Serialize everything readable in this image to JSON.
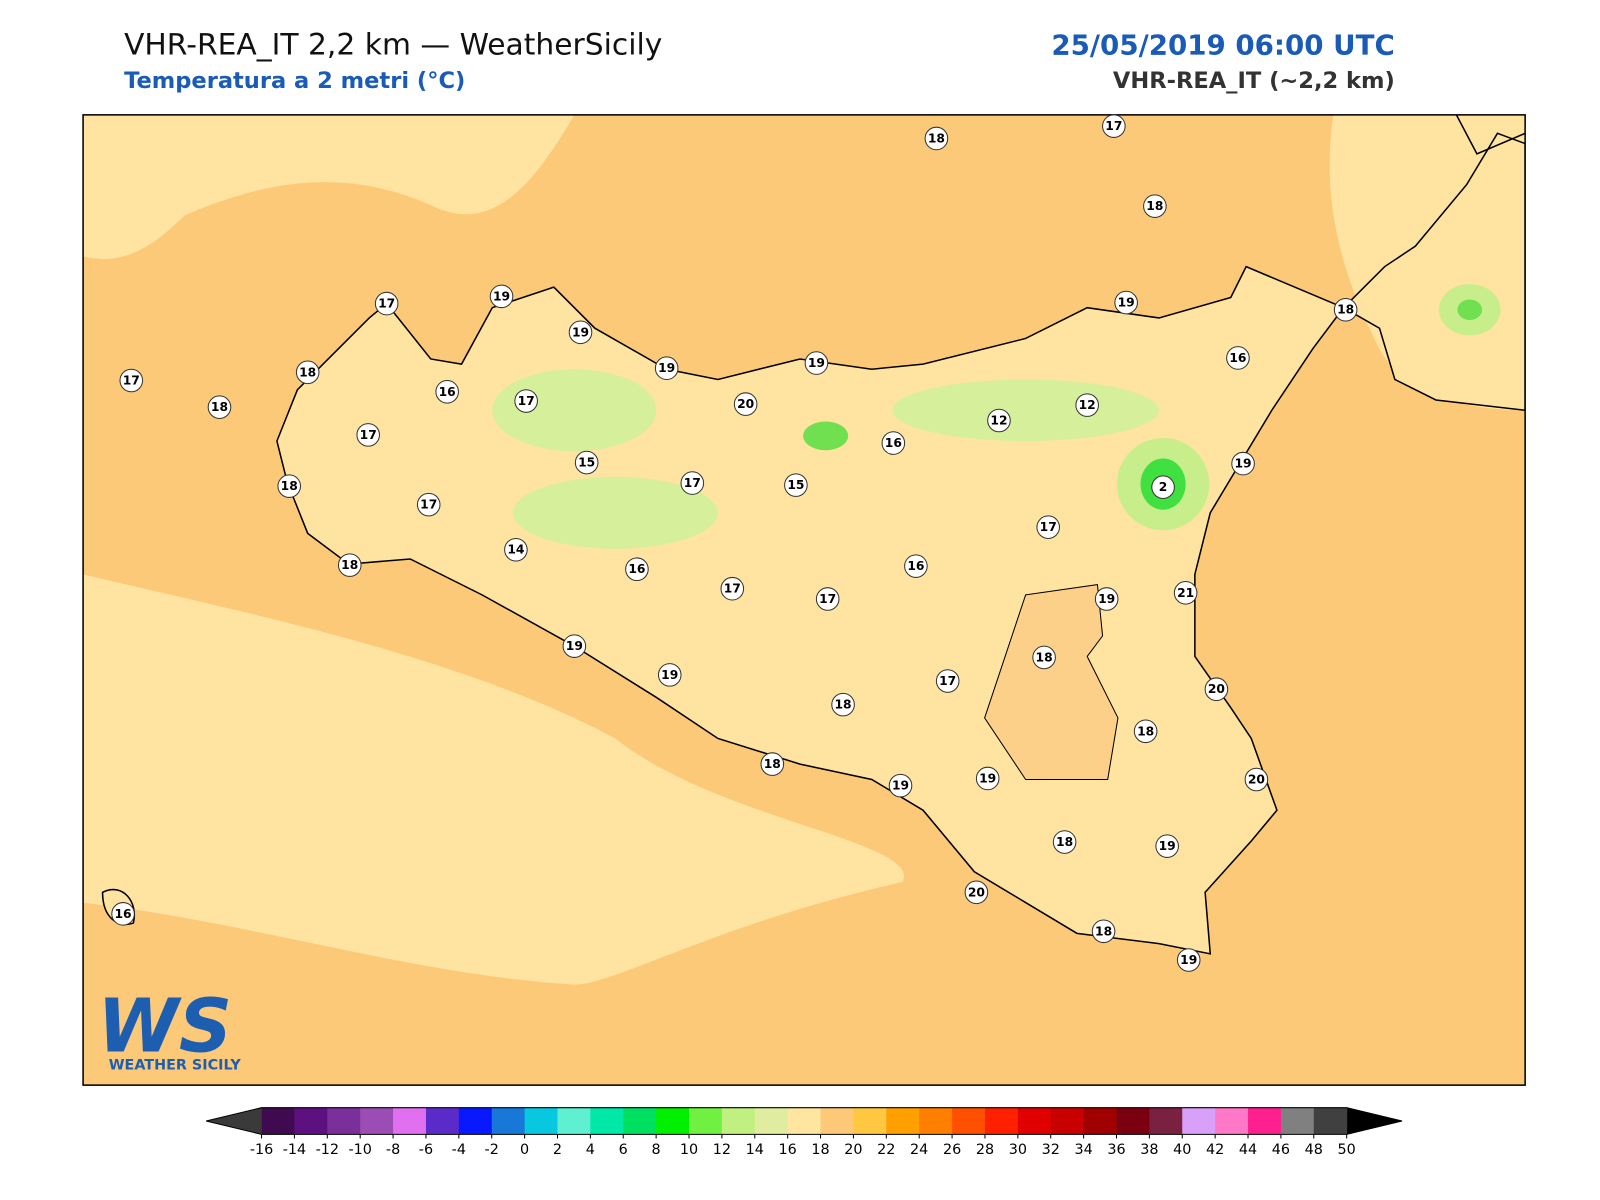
{
  "header": {
    "title": "VHR-REA_IT 2,2 km — WeatherSicily",
    "subtitle": "Temperatura a 2 metri (°C)",
    "datetime": "25/05/2019 06:00 UTC",
    "model": "VHR-REA_IT (~2,2 km)"
  },
  "logo": {
    "mark": "WS",
    "name": "WEATHER SICILY"
  },
  "stations": [
    18,
    17,
    18,
    17,
    19,
    19,
    19,
    19,
    19,
    18,
    16,
    17,
    18,
    16,
    18,
    17,
    20,
    17,
    12,
    12,
    16,
    15,
    17,
    15,
    2,
    19,
    18,
    17,
    14,
    18,
    16,
    17,
    16,
    17,
    17,
    19,
    21,
    18,
    19,
    19,
    17,
    18,
    20,
    18,
    18,
    19,
    19,
    20,
    18,
    19,
    20,
    18,
    19,
    16
  ],
  "colorbar": {
    "ticks": [
      -16,
      -14,
      -12,
      -10,
      -8,
      -6,
      -4,
      -2,
      0,
      2,
      4,
      6,
      8,
      10,
      12,
      14,
      16,
      18,
      20,
      22,
      24,
      26,
      28,
      30,
      32,
      34,
      36,
      38,
      40,
      42,
      44,
      46,
      48,
      50
    ],
    "colors": [
      "#3f0a4f",
      "#5d1180",
      "#7a2f9a",
      "#9b4db5",
      "#e070f0",
      "#5a2bc9",
      "#0818ff",
      "#1878d8",
      "#08c8e0",
      "#5ef0d0",
      "#00e8a8",
      "#00e060",
      "#00f000",
      "#70f040",
      "#c0f080",
      "#e0eca0",
      "#ffe6a0",
      "#fdc878",
      "#ffc840",
      "#ffa000",
      "#ff8000",
      "#ff5000",
      "#ff2000",
      "#e00000",
      "#c80000",
      "#a00000",
      "#7a0010",
      "#7a2040",
      "#d8a0f8",
      "#ff78c8",
      "#ff2090",
      "#808080",
      "#404040"
    ],
    "under": "#3a3a3a",
    "over": "#000000"
  }
}
